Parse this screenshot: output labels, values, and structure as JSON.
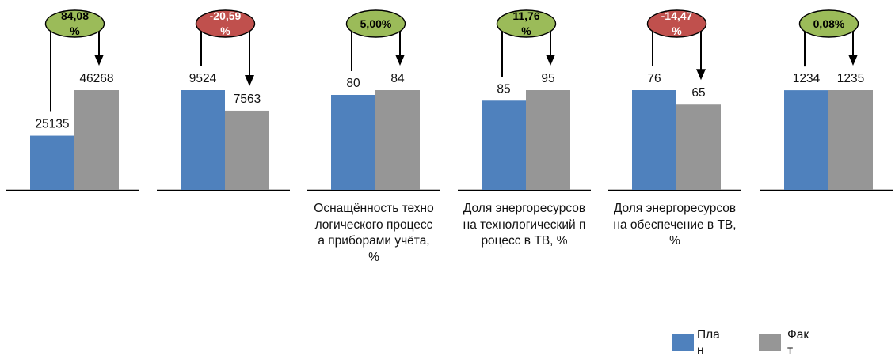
{
  "chart_data": {
    "type": "bar",
    "series": [
      {
        "name": "План",
        "color": "#4f81bd"
      },
      {
        "name": "Факт",
        "color": "#969696"
      }
    ],
    "panels": [
      {
        "label": "",
        "plan": 25135,
        "fact": 46268,
        "plan_label": "25135",
        "fact_label": "46268",
        "change": "84,08%",
        "trend": "positive"
      },
      {
        "label": "",
        "plan": 9524,
        "fact": 7563,
        "plan_label": "9524",
        "fact_label": "7563",
        "change": "-20,59%",
        "trend": "negative"
      },
      {
        "label": "Оснащённость технологического процесса приборами учёта, %",
        "plan": 80,
        "fact": 84,
        "plan_label": "80",
        "fact_label": "84",
        "change": "5,00%",
        "trend": "positive"
      },
      {
        "label": "Доля энергоресурсов на технологический процесс в ТВ, %",
        "plan": 85,
        "fact": 95,
        "plan_label": "85",
        "fact_label": "95",
        "change": "11,76%",
        "trend": "positive"
      },
      {
        "label": "Доля энергоресурсов на обеспечение в ТВ, %",
        "plan": 76,
        "fact": 65,
        "plan_label": "76",
        "fact_label": "65",
        "change": "-14,47%",
        "trend": "negative"
      },
      {
        "label": "",
        "plan": 1234,
        "fact": 1235,
        "plan_label": "1234",
        "fact_label": "1235",
        "change": "0,08%",
        "trend": "positive"
      }
    ],
    "legend": {
      "placement": "bottom-right"
    },
    "colors": {
      "positive": "#9bbb59",
      "negative": "#c0504d"
    }
  }
}
